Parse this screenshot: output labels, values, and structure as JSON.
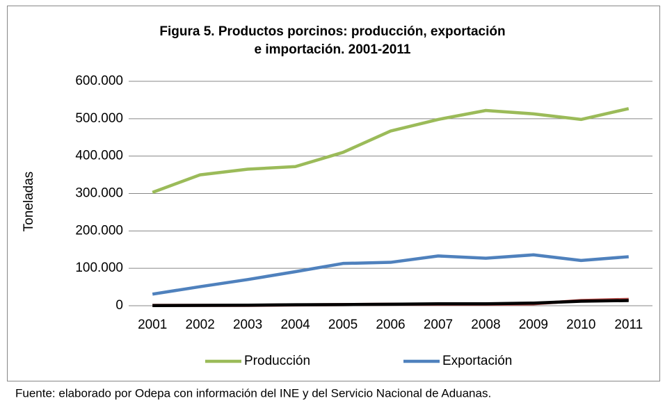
{
  "chart_data": {
    "type": "line",
    "title": [
      "Figura 5. Productos porcinos: producción, exportación",
      "e importación. 2001-2011"
    ],
    "y_label": "Toneladas",
    "categories": [
      "2001",
      "2002",
      "2003",
      "2004",
      "2005",
      "2006",
      "2007",
      "2008",
      "2009",
      "2010",
      "2011"
    ],
    "series": [
      {
        "name": "Producción",
        "color": "#9bbb59",
        "values": [
          303000,
          350000,
          365000,
          372000,
          410000,
          467000,
          498000,
          522000,
          513000,
          498000,
          527000
        ]
      },
      {
        "name": "Exportación",
        "color": "#4f81bd",
        "values": [
          31000,
          51000,
          70000,
          91000,
          113000,
          116000,
          133000,
          127000,
          136000,
          121000,
          131000
        ]
      },
      {
        "color": "#c0504d",
        "values": [
          1000,
          1000,
          1000,
          2000,
          3000,
          4000,
          4000,
          4000,
          5000,
          14000,
          17000
        ]
      },
      {
        "color": "#000000",
        "values": [
          500,
          1000,
          1500,
          2500,
          3000,
          4000,
          5000,
          5000,
          7000,
          12000,
          14000
        ]
      }
    ],
    "ylim": [
      0,
      600000
    ],
    "yticks": [
      0,
      {
        "value": 100000,
        "label": "100.000"
      },
      {
        "value": 200000,
        "label": "200.000"
      },
      {
        "value": 300000,
        "label": "300.000"
      },
      {
        "value": 400000,
        "label": "400.000"
      },
      {
        "value": 500000,
        "label": "500.000"
      },
      {
        "value": 600000,
        "label": "600.000"
      }
    ],
    "grid": true,
    "legend": "bottom",
    "source": "Fuente: elaborado por Odepa con información del INE y del Servicio Nacional de Aduanas."
  }
}
